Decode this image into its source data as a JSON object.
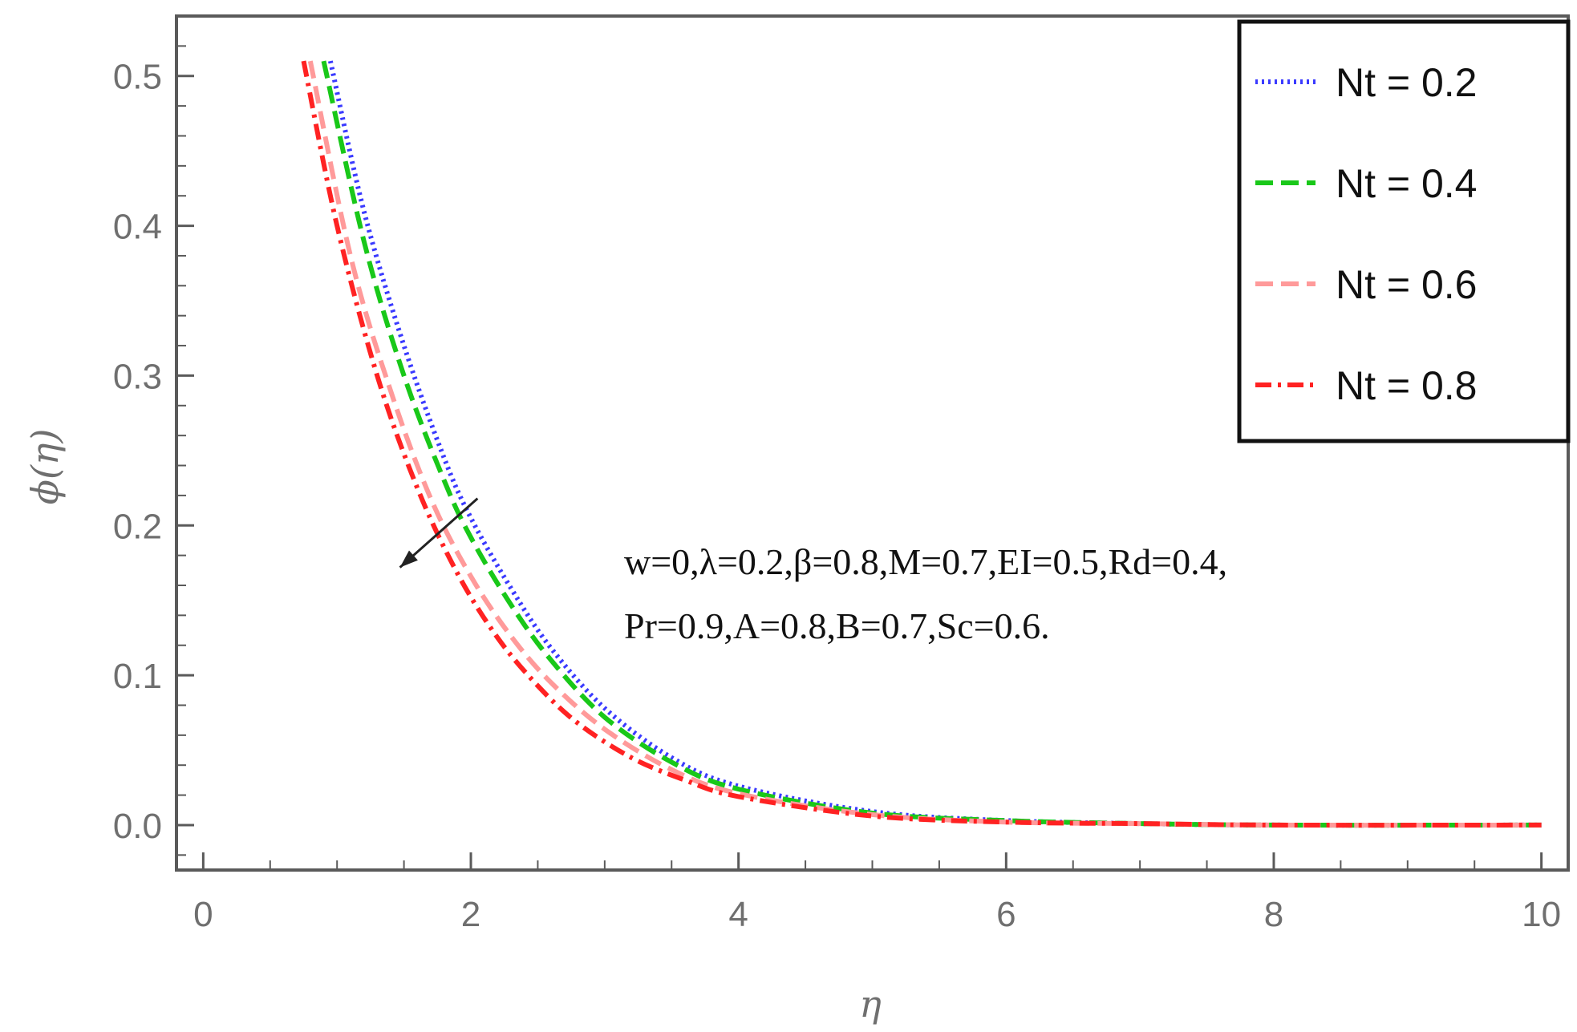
{
  "chart_data": {
    "type": "line",
    "xlabel": "η",
    "ylabel": "ϕ(η)",
    "xlim": [
      -0.2,
      10.2
    ],
    "ylim": [
      -0.03,
      0.54
    ],
    "x_ticks": [
      0,
      2,
      4,
      6,
      8,
      10
    ],
    "x_tick_labels": [
      "0",
      "2",
      "4",
      "6",
      "8",
      "10"
    ],
    "y_ticks": [
      0.0,
      0.1,
      0.2,
      0.3,
      0.4,
      0.5
    ],
    "y_tick_labels": [
      "0.0",
      "0.1",
      "0.2",
      "0.3",
      "0.4",
      "0.5"
    ],
    "grid": false,
    "legend_position": "top-right",
    "series": [
      {
        "name": "Nt = 0.2",
        "color": "#3a3aff",
        "style": "dotted",
        "x": [
          0.95,
          1.2,
          1.5,
          1.8,
          2.0,
          2.3,
          2.6,
          3.0,
          3.5,
          4.0,
          5.0,
          6.0,
          7.0,
          8.0,
          10.0
        ],
        "y": [
          0.51,
          0.41,
          0.32,
          0.245,
          0.205,
          0.158,
          0.118,
          0.078,
          0.045,
          0.026,
          0.009,
          0.003,
          0.001,
          0.0,
          0.0
        ]
      },
      {
        "name": "Nt = 0.4",
        "color": "#19c819",
        "style": "dashed",
        "x": [
          0.9,
          1.2,
          1.5,
          1.8,
          2.0,
          2.3,
          2.6,
          3.0,
          3.5,
          4.0,
          5.0,
          6.0,
          7.0,
          8.0,
          10.0
        ],
        "y": [
          0.51,
          0.39,
          0.3,
          0.23,
          0.192,
          0.147,
          0.11,
          0.072,
          0.042,
          0.024,
          0.008,
          0.003,
          0.001,
          0.0,
          0.0
        ]
      },
      {
        "name": "Nt  = 0.6",
        "color": "#ff9a9a",
        "style": "dashed",
        "x": [
          0.8,
          1.1,
          1.4,
          1.7,
          2.0,
          2.3,
          2.6,
          3.0,
          3.5,
          4.0,
          5.0,
          6.0,
          7.0,
          8.0,
          10.0
        ],
        "y": [
          0.51,
          0.38,
          0.29,
          0.218,
          0.166,
          0.126,
          0.095,
          0.064,
          0.037,
          0.021,
          0.007,
          0.002,
          0.001,
          0.0,
          0.0
        ]
      },
      {
        "name": "Nt = 0.8",
        "color": "#ff2222",
        "style": "dashdot",
        "x": [
          0.75,
          1.0,
          1.3,
          1.6,
          1.9,
          2.2,
          2.5,
          2.8,
          3.2,
          3.6,
          4.0,
          5.0,
          6.0,
          7.0,
          8.0,
          10.0
        ],
        "y": [
          0.51,
          0.4,
          0.3,
          0.225,
          0.168,
          0.125,
          0.093,
          0.068,
          0.045,
          0.03,
          0.019,
          0.006,
          0.002,
          0.001,
          0.0,
          0.0
        ]
      }
    ],
    "annotation_lines": [
      "w=0,λ=0.2,β=0.8,M=0.7,EI=0.5,Rd=0.4,",
      "Pr=0.9,A=0.8,B=0.7,Sc=0.6."
    ]
  }
}
